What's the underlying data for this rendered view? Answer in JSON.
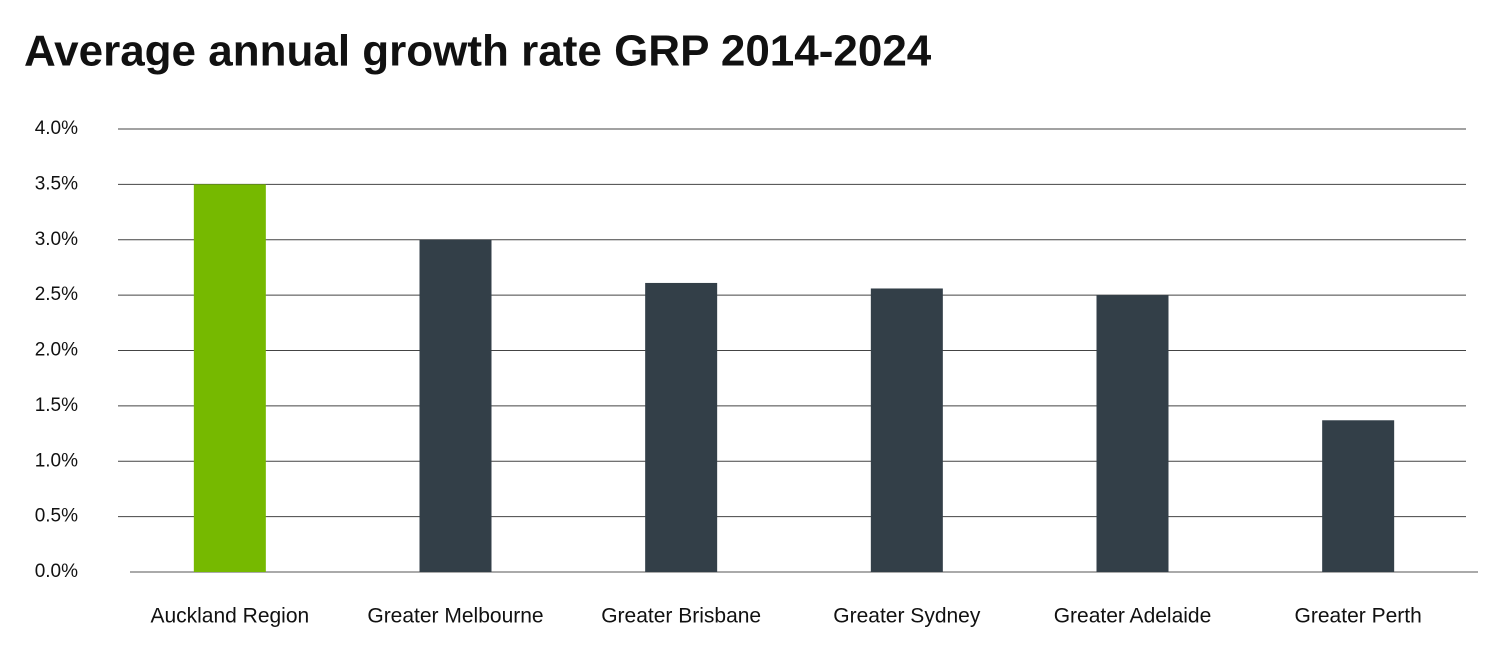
{
  "chart_data": {
    "type": "bar",
    "title": "Average annual growth rate GRP 2014-2024",
    "categories": [
      "Auckland Region",
      "Greater Melbourne",
      "Greater Brisbane",
      "Greater Sydney",
      "Greater Adelaide",
      "Greater Perth"
    ],
    "values": [
      3.5,
      3.0,
      2.61,
      2.56,
      2.5,
      1.37
    ],
    "colors": [
      "#76b900",
      "#333f48",
      "#333f48",
      "#333f48",
      "#333f48",
      "#333f48"
    ],
    "ylim": [
      0,
      4
    ],
    "yticks": [
      {
        "value": 0,
        "label": "0.0%"
      },
      {
        "value": 0.5,
        "label": "0.5%"
      },
      {
        "value": 1,
        "label": "1.0%"
      },
      {
        "value": 1.5,
        "label": "1.5%"
      },
      {
        "value": 2,
        "label": "2.0%"
      },
      {
        "value": 2.5,
        "label": "2.5%"
      },
      {
        "value": 3,
        "label": "3.0%"
      },
      {
        "value": 3.5,
        "label": "3.5%"
      },
      {
        "value": 4,
        "label": "4.0%"
      }
    ],
    "grid": true
  }
}
